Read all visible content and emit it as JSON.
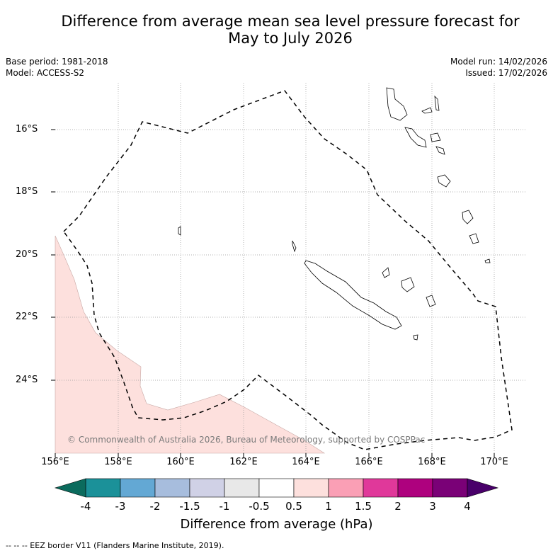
{
  "title_line1": "Difference from average mean sea level pressure forecast for",
  "title_line2": "May to July 2026",
  "meta": {
    "base_period": "Base period: 1981-2018",
    "model": "Model: ACCESS-S2",
    "model_run": "Model run: 14/02/2026",
    "issued": "Issued: 17/02/2026"
  },
  "map": {
    "y_ticks": [
      "16°S",
      "18°S",
      "20°S",
      "22°S",
      "24°S"
    ],
    "x_ticks": [
      "156°E",
      "158°E",
      "160°E",
      "162°E",
      "164°E",
      "166°E",
      "168°E",
      "170°E"
    ],
    "copyright": "© Commonwealth of Australia 2026, Bureau of Meteorology, supported by COSPPac",
    "positive_region_color": "#fde0dd"
  },
  "colorbar": {
    "labels": [
      "-4",
      "-3",
      "-2",
      "-1.5",
      "-1",
      "-0.5",
      "0.5",
      "1",
      "1.5",
      "2",
      "3",
      "4"
    ],
    "colors": [
      "#1b9199",
      "#63a8d4",
      "#a7bddd",
      "#d0d1e6",
      "#e8e8e8",
      "#ffffff",
      "#fde0dd",
      "#fa9fb5",
      "#e0389a",
      "#ae017e",
      "#7a0177"
    ],
    "under_color": "#0b6b5d",
    "over_color": "#49006a",
    "title": "Difference from average (hPa)"
  },
  "footer": "--  --  -- EEZ border V11 (Flanders Marine Institute, 2019)."
}
